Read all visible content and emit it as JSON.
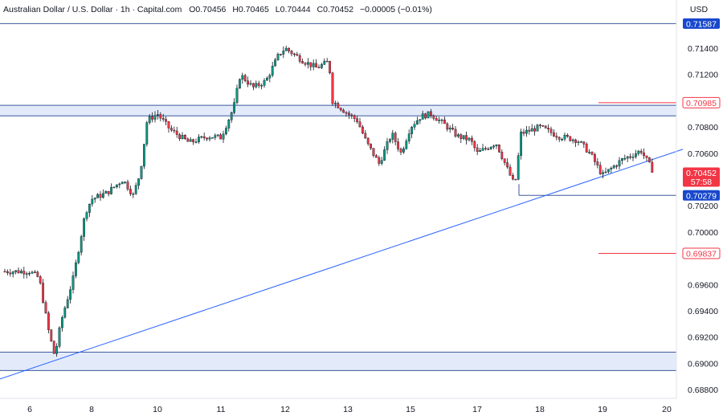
{
  "header": {
    "symbol": "Australian Dollar / U.S. Dollar · 1h · Capital.com",
    "open_label": "O",
    "open": "0.70456",
    "high_label": "H",
    "high": "0.70465",
    "low_label": "L",
    "low": "0.70444",
    "close_label": "C",
    "close": "0.70452",
    "change": "−0.00005 (−0.01%)"
  },
  "currency": "USD",
  "colors": {
    "up": "#089981",
    "down": "#f23645",
    "line_blue": "#2962ff",
    "zone_fill": "#e3ebfb",
    "zone_line": "#3d5a9a",
    "tag_blue": "#1848cc",
    "tag_red": "#f23645"
  },
  "chart_data": {
    "type": "candlestick",
    "y_ticks": [
      "0.71400",
      "0.71200",
      "0.70800",
      "0.70600",
      "0.70200",
      "0.70000",
      "0.69600",
      "0.69400",
      "0.69200",
      "0.69000",
      "0.68800"
    ],
    "x_ticks": [
      "6",
      "8",
      "10",
      "11",
      "12",
      "13",
      "15",
      "17",
      "18",
      "19",
      "20"
    ],
    "price_tags": [
      {
        "value": "0.71587",
        "style": "blue"
      },
      {
        "value": "0.70985",
        "style": "red-outline"
      },
      {
        "value": "0.70452",
        "style": "red",
        "countdown": "57:58"
      },
      {
        "value": "0.70279",
        "style": "blue"
      },
      {
        "value": "0.69837",
        "style": "red-outline"
      }
    ],
    "horizontal_lines": [
      0.71587,
      0.70279
    ],
    "level_lines": [
      0.70985,
      0.69837
    ],
    "zones": [
      {
        "from": 0.70885,
        "to": 0.70965
      },
      {
        "from": 0.68945,
        "to": 0.69085
      }
    ],
    "trendline": {
      "from": {
        "x": "6",
        "y": 0.6893
      },
      "to": {
        "x": "20",
        "y": 0.7063
      }
    },
    "path": [
      [
        "6",
        0.697
      ],
      [
        "6.3",
        0.6965
      ],
      [
        "6.6",
        0.6925
      ],
      [
        "6.8",
        0.6905
      ],
      [
        "7",
        0.6932
      ],
      [
        "7.4",
        0.6965
      ],
      [
        "7.8",
        0.7015
      ],
      [
        "8",
        0.7025
      ],
      [
        "8.5",
        0.703
      ],
      [
        "9",
        0.704
      ],
      [
        "9.3",
        0.7028
      ],
      [
        "9.5",
        0.7045
      ],
      [
        "9.7",
        0.7085
      ],
      [
        "10",
        0.709
      ],
      [
        "10.2",
        0.7078
      ],
      [
        "10.5",
        0.7068
      ],
      [
        "10.8",
        0.7073
      ],
      [
        "11",
        0.7072
      ],
      [
        "11.2",
        0.7095
      ],
      [
        "11.3",
        0.712
      ],
      [
        "11.5",
        0.711
      ],
      [
        "11.7",
        0.7115
      ],
      [
        "11.9",
        0.7135
      ],
      [
        "12",
        0.714
      ],
      [
        "12.3",
        0.713
      ],
      [
        "12.5",
        0.7125
      ],
      [
        "12.7",
        0.713
      ],
      [
        "12.75",
        0.71
      ],
      [
        "13",
        0.709
      ],
      [
        "13.3",
        0.7085
      ],
      [
        "13.6",
        0.7068
      ],
      [
        "14",
        0.7052
      ],
      [
        "14.4",
        0.7075
      ],
      [
        "14.7",
        0.706
      ],
      [
        "15",
        0.708
      ],
      [
        "15.3",
        0.7088
      ],
      [
        "15.6",
        0.709
      ],
      [
        "16",
        0.7082
      ],
      [
        "16.4",
        0.7073
      ],
      [
        "16.8",
        0.707
      ],
      [
        "17",
        0.706
      ],
      [
        "17.3",
        0.7068
      ],
      [
        "17.6",
        0.7035
      ],
      [
        "17.7",
        0.7075
      ],
      [
        "18",
        0.708
      ],
      [
        "18.3",
        0.7073
      ],
      [
        "18.6",
        0.707
      ],
      [
        "18.8",
        0.706
      ],
      [
        "19",
        0.7043
      ],
      [
        "19.3",
        0.7055
      ],
      [
        "19.6",
        0.7062
      ],
      [
        "19.8",
        0.70452
      ]
    ]
  }
}
